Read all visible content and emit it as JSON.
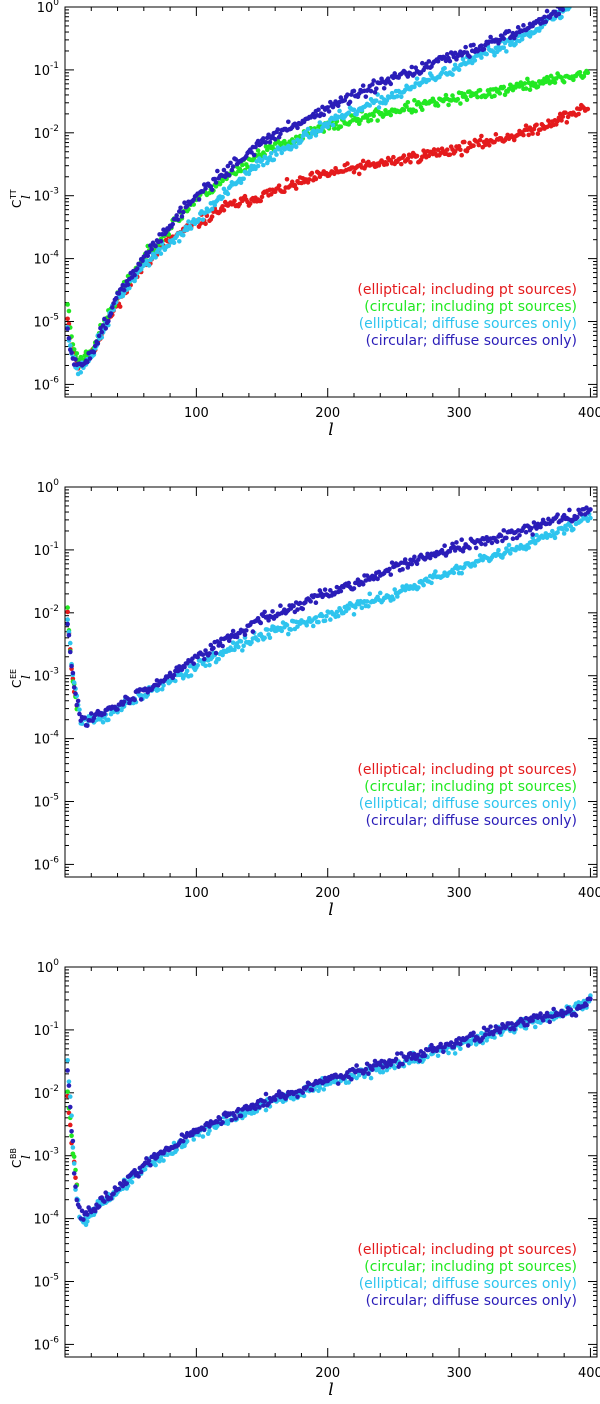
{
  "colors": {
    "elliptical_pt": "#e41a1c",
    "circular_pt": "#22e822",
    "elliptical_diffuse": "#2ec4ee",
    "circular_diffuse": "#2a1db8"
  },
  "chart_data": [
    {
      "type": "scatter",
      "ylabel_main": "C",
      "ylabel_sub": "l",
      "ylabel_sup": "TT",
      "xlabel": "l",
      "xlim": [
        0,
        405
      ],
      "ylim_log10": [
        -6.2,
        0
      ],
      "log_y": true,
      "x_ticks": [
        "100",
        "200",
        "300",
        "400"
      ],
      "y_ticks": [
        {
          "base": "10",
          "exp": "0"
        },
        {
          "base": "10",
          "exp": "-1"
        },
        {
          "base": "10",
          "exp": "-2"
        },
        {
          "base": "10",
          "exp": "-3"
        },
        {
          "base": "10",
          "exp": "-4"
        },
        {
          "base": "10",
          "exp": "-5"
        },
        {
          "base": "10",
          "exp": "-6"
        }
      ],
      "legend_position": "bottom-right",
      "series": [
        {
          "name": "(elliptical; including pt sources)",
          "color": "#e41a1c",
          "seed": 11,
          "points": [
            [
              2,
              -4.9
            ],
            [
              5,
              -5.35
            ],
            [
              10,
              -5.7
            ],
            [
              20,
              -5.5
            ],
            [
              40,
              -4.7
            ],
            [
              60,
              -4.1
            ],
            [
              80,
              -3.7
            ],
            [
              100,
              -3.45
            ],
            [
              120,
              -3.2
            ],
            [
              150,
              -3.0
            ],
            [
              200,
              -2.65
            ],
            [
              250,
              -2.45
            ],
            [
              300,
              -2.25
            ],
            [
              350,
              -2.0
            ],
            [
              398,
              -1.6
            ]
          ]
        },
        {
          "name": "(circular; including pt sources)",
          "color": "#22e822",
          "seed": 23,
          "points": [
            [
              2,
              -4.7
            ],
            [
              5,
              -5.25
            ],
            [
              10,
              -5.65
            ],
            [
              20,
              -5.45
            ],
            [
              40,
              -4.6
            ],
            [
              60,
              -4.0
            ],
            [
              80,
              -3.5
            ],
            [
              100,
              -3.05
            ],
            [
              120,
              -2.75
            ],
            [
              150,
              -2.3
            ],
            [
              200,
              -1.9
            ],
            [
              250,
              -1.65
            ],
            [
              300,
              -1.45
            ],
            [
              350,
              -1.25
            ],
            [
              398,
              -1.05
            ]
          ]
        },
        {
          "name": "(elliptical; diffuse sources only)",
          "color": "#2ec4ee",
          "seed": 37,
          "points": [
            [
              2,
              -5.05
            ],
            [
              5,
              -5.5
            ],
            [
              10,
              -5.8
            ],
            [
              20,
              -5.55
            ],
            [
              40,
              -4.65
            ],
            [
              60,
              -4.1
            ],
            [
              80,
              -3.75
            ],
            [
              100,
              -3.4
            ],
            [
              120,
              -3.0
            ],
            [
              150,
              -2.45
            ],
            [
              200,
              -1.85
            ],
            [
              250,
              -1.4
            ],
            [
              300,
              -0.95
            ],
            [
              350,
              -0.45
            ],
            [
              385,
              0.0
            ]
          ]
        },
        {
          "name": "(circular; diffuse sources only)",
          "color": "#2a1db8",
          "seed": 51,
          "points": [
            [
              2,
              -5.15
            ],
            [
              5,
              -5.55
            ],
            [
              10,
              -5.75
            ],
            [
              20,
              -5.5
            ],
            [
              40,
              -4.6
            ],
            [
              60,
              -4.0
            ],
            [
              80,
              -3.45
            ],
            [
              100,
              -3.0
            ],
            [
              120,
              -2.65
            ],
            [
              150,
              -2.15
            ],
            [
              200,
              -1.6
            ],
            [
              250,
              -1.15
            ],
            [
              300,
              -0.75
            ],
            [
              350,
              -0.35
            ],
            [
              380,
              0.0
            ]
          ]
        }
      ]
    },
    {
      "type": "scatter",
      "ylabel_main": "C",
      "ylabel_sub": "l",
      "ylabel_sup": "EE",
      "xlabel": "l",
      "xlim": [
        0,
        405
      ],
      "ylim_log10": [
        -6.2,
        0
      ],
      "log_y": true,
      "x_ticks": [
        "100",
        "200",
        "300",
        "400"
      ],
      "y_ticks": [
        {
          "base": "10",
          "exp": "0"
        },
        {
          "base": "10",
          "exp": "-1"
        },
        {
          "base": "10",
          "exp": "-2"
        },
        {
          "base": "10",
          "exp": "-3"
        },
        {
          "base": "10",
          "exp": "-4"
        },
        {
          "base": "10",
          "exp": "-5"
        },
        {
          "base": "10",
          "exp": "-6"
        }
      ],
      "legend_position": "bottom-right",
      "series": [
        {
          "name": "(elliptical; including pt sources)",
          "color": "#e41a1c",
          "seed": 61,
          "points": [
            [
              2,
              -2.0
            ],
            [
              4,
              -2.6
            ],
            [
              6,
              -3.1
            ],
            [
              9,
              -3.5
            ]
          ]
        },
        {
          "name": "(circular; including pt sources)",
          "color": "#22e822",
          "seed": 67,
          "points": [
            [
              2,
              -1.9
            ],
            [
              4,
              -2.55
            ],
            [
              6,
              -3.05
            ],
            [
              9,
              -3.45
            ]
          ]
        },
        {
          "name": "(elliptical; diffuse sources only)",
          "color": "#2ec4ee",
          "seed": 71,
          "points": [
            [
              2,
              -2.1
            ],
            [
              6,
              -3.0
            ],
            [
              12,
              -3.7
            ],
            [
              30,
              -3.65
            ],
            [
              60,
              -3.3
            ],
            [
              100,
              -2.85
            ],
            [
              150,
              -2.35
            ],
            [
              200,
              -2.05
            ],
            [
              250,
              -1.7
            ],
            [
              300,
              -1.3
            ],
            [
              350,
              -0.95
            ],
            [
              400,
              -0.45
            ]
          ]
        },
        {
          "name": "(circular; diffuse sources only)",
          "color": "#2a1db8",
          "seed": 83,
          "points": [
            [
              2,
              -2.2
            ],
            [
              6,
              -3.05
            ],
            [
              12,
              -3.7
            ],
            [
              30,
              -3.6
            ],
            [
              60,
              -3.25
            ],
            [
              100,
              -2.7
            ],
            [
              150,
              -2.1
            ],
            [
              200,
              -1.7
            ],
            [
              250,
              -1.3
            ],
            [
              300,
              -0.95
            ],
            [
              350,
              -0.7
            ],
            [
              400,
              -0.35
            ]
          ]
        }
      ]
    },
    {
      "type": "scatter",
      "ylabel_main": "C",
      "ylabel_sub": "l",
      "ylabel_sup": "BB",
      "xlabel": "l",
      "xlim": [
        0,
        405
      ],
      "ylim_log10": [
        -6.2,
        0
      ],
      "log_y": true,
      "x_ticks": [
        "100",
        "200",
        "300",
        "400"
      ],
      "y_ticks": [
        {
          "base": "10",
          "exp": "0"
        },
        {
          "base": "10",
          "exp": "-1"
        },
        {
          "base": "10",
          "exp": "-2"
        },
        {
          "base": "10",
          "exp": "-3"
        },
        {
          "base": "10",
          "exp": "-4"
        },
        {
          "base": "10",
          "exp": "-5"
        },
        {
          "base": "10",
          "exp": "-6"
        }
      ],
      "legend_position": "bottom-right",
      "series": [
        {
          "name": "(elliptical; including pt sources)",
          "color": "#e41a1c",
          "seed": 91,
          "points": [
            [
              2,
              -2.0
            ],
            [
              4,
              -2.5
            ],
            [
              6,
              -3.0
            ],
            [
              9,
              -3.5
            ]
          ]
        },
        {
          "name": "(circular; including pt sources)",
          "color": "#22e822",
          "seed": 97,
          "points": [
            [
              2,
              -1.9
            ],
            [
              4,
              -2.4
            ],
            [
              6,
              -2.9
            ],
            [
              9,
              -3.4
            ]
          ]
        },
        {
          "name": "(elliptical; diffuse sources only)",
          "color": "#2ec4ee",
          "seed": 101,
          "points": [
            [
              2,
              -1.5
            ],
            [
              5,
              -2.4
            ],
            [
              8,
              -3.5
            ],
            [
              12,
              -4.05
            ],
            [
              30,
              -3.75
            ],
            [
              60,
              -3.2
            ],
            [
              100,
              -2.65
            ],
            [
              150,
              -2.2
            ],
            [
              200,
              -1.85
            ],
            [
              250,
              -1.55
            ],
            [
              300,
              -1.25
            ],
            [
              350,
              -0.9
            ],
            [
              390,
              -0.65
            ],
            [
              400,
              -0.5
            ]
          ]
        },
        {
          "name": "(circular; diffuse sources only)",
          "color": "#2a1db8",
          "seed": 113,
          "points": [
            [
              2,
              -1.6
            ],
            [
              5,
              -2.5
            ],
            [
              8,
              -3.5
            ],
            [
              12,
              -4.0
            ],
            [
              30,
              -3.7
            ],
            [
              60,
              -3.15
            ],
            [
              100,
              -2.6
            ],
            [
              150,
              -2.15
            ],
            [
              200,
              -1.8
            ],
            [
              250,
              -1.5
            ],
            [
              300,
              -1.2
            ],
            [
              350,
              -0.85
            ],
            [
              390,
              -0.7
            ],
            [
              400,
              -0.5
            ]
          ]
        }
      ]
    }
  ]
}
